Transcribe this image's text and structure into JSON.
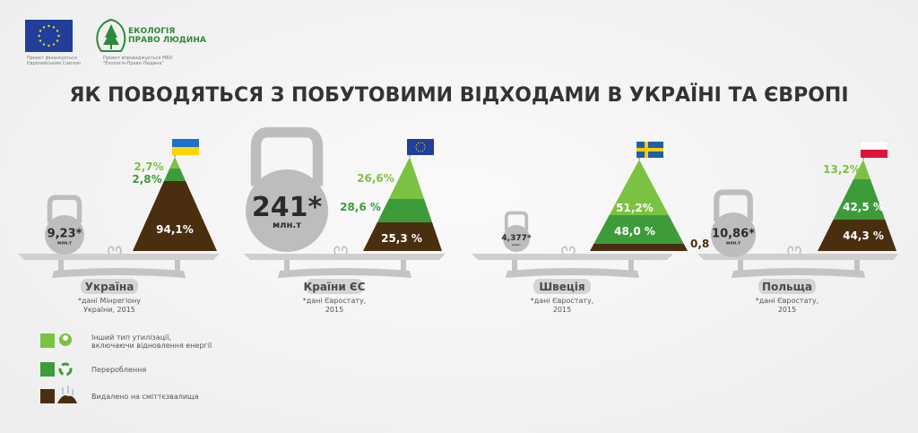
{
  "header": {
    "title": "ЯК ПОВОДЯТЬСЯ З ПОБУТОВИМИ ВІДХОДАМИ В УКРАЇНІ ТА ЄВРОПІ",
    "eu_logo_caption": [
      "Проект фінансується",
      "Європейським Союзом"
    ],
    "epl_logo_text": [
      "ЕКОЛОГІЯ",
      "ПРАВО ЛЮДИНА"
    ],
    "epl_logo_caption": [
      "Проект впроваджується МБО",
      "\"Екологія-Право-Людина\""
    ]
  },
  "colors": {
    "other_use": "#7cc242",
    "recycling": "#3e9b3a",
    "landfill": "#4a2e10",
    "scale": "#c8c8c8",
    "kettlebell": "#bdbdbd"
  },
  "panels": [
    {
      "country": "Україна",
      "flag": "ukraine",
      "weight": "9,23*",
      "unit": "млн.т",
      "source": [
        "*дані Мінрегіону",
        "України, 2015"
      ],
      "segments": [
        {
          "category": "other_use",
          "value": "2,7%"
        },
        {
          "category": "recycling",
          "value": "2,8%"
        },
        {
          "category": "landfill",
          "value": "94,1%"
        }
      ]
    },
    {
      "country": "Країни ЄС",
      "flag": "eu",
      "weight": "241*",
      "unit": "млн.т",
      "source": [
        "*дані Євростату,",
        "2015"
      ],
      "segments": [
        {
          "category": "other_use",
          "value": "26,6%"
        },
        {
          "category": "recycling",
          "value": "28,6 %"
        },
        {
          "category": "landfill",
          "value": "25,3 %"
        }
      ]
    },
    {
      "country": "Швеція",
      "flag": "sweden",
      "weight": "4,377*",
      "unit": "млн.т",
      "source": [
        "*дані Євростату,",
        "2015"
      ],
      "segments": [
        {
          "category": "other_use",
          "value": "51,2%"
        },
        {
          "category": "recycling",
          "value": "48,0 %"
        },
        {
          "category": "landfill",
          "value": "0,8 %"
        }
      ]
    },
    {
      "country": "Польща",
      "flag": "poland",
      "weight": "10,86*",
      "unit": "млн.т",
      "source": [
        "*дані Євростату,",
        "2015"
      ],
      "segments": [
        {
          "category": "other_use",
          "value": "13,2%"
        },
        {
          "category": "recycling",
          "value": "42,5 %"
        },
        {
          "category": "landfill",
          "value": "44,3 %"
        }
      ]
    }
  ],
  "legend": [
    {
      "category": "other_use",
      "icon": "hands-leaf-icon",
      "label": [
        "Інший тип утилізації,",
        "включаючи відновлення енергії"
      ]
    },
    {
      "category": "recycling",
      "icon": "recycle-icon",
      "label": [
        "Перероблення"
      ]
    },
    {
      "category": "landfill",
      "icon": "landfill-pile-icon",
      "label": [
        "Видалено на сміттєзвалища"
      ]
    }
  ]
}
